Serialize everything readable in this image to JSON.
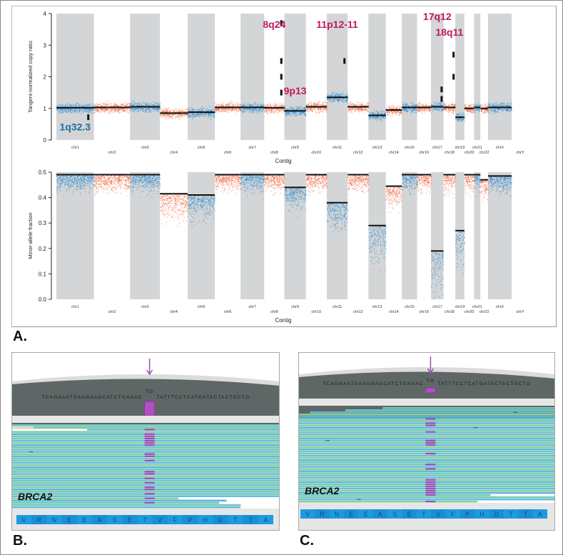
{
  "figure": {
    "panel_labels": [
      "A.",
      "B.",
      "C."
    ]
  },
  "chart_data": [
    {
      "type": "scatter",
      "id": "copy-ratio",
      "title": "",
      "xlabel": "Contig",
      "ylabel": "Tangent-normalized copy ratio",
      "ylim": [
        0,
        4
      ],
      "yticks": [
        "0",
        "1",
        "2",
        "3",
        "4"
      ],
      "grid": false,
      "categories": [
        "chr1",
        "chr2",
        "chr3",
        "chr4",
        "chr5",
        "chr6",
        "chr7",
        "chr8",
        "chr9",
        "chr10",
        "chr11",
        "chr12",
        "chr13",
        "chr14",
        "chr15",
        "chr16",
        "chr17",
        "chr18",
        "chr19",
        "chr20",
        "chr21",
        "chr22",
        "chrX",
        "chrY"
      ],
      "series": [
        {
          "name": "segment mean copy ratio",
          "values": [
            1.02,
            1.03,
            1.05,
            0.85,
            0.88,
            1.03,
            1.03,
            1.02,
            0.92,
            1.05,
            1.35,
            1.05,
            0.78,
            0.95,
            1.03,
            1.03,
            1.05,
            1.03,
            0.72,
            1.0,
            1.03,
            1.0,
            1.03,
            null
          ]
        }
      ],
      "focal_segments": [
        {
          "chrom": "chr1",
          "value": 0.72
        },
        {
          "chrom": "chr8",
          "value": 1.5
        },
        {
          "chrom": "chr8",
          "value": 2.0
        },
        {
          "chrom": "chr8",
          "value": 2.5
        },
        {
          "chrom": "chr8",
          "value": 3.7
        },
        {
          "chrom": "chr11",
          "value": 2.5
        },
        {
          "chrom": "chr17",
          "value": 1.3
        },
        {
          "chrom": "chr17",
          "value": 1.6
        },
        {
          "chrom": "chr18",
          "value": 2.0
        },
        {
          "chrom": "chr18",
          "value": 2.7
        }
      ],
      "annotations": [
        {
          "text": "1q32.3",
          "color": "#1d6fa5",
          "chrom": "chr1",
          "value": 0.3
        },
        {
          "text": "8q24",
          "color": "#c2185b",
          "chrom": "chr8",
          "value": 3.55
        },
        {
          "text": "9p13",
          "color": "#c2185b",
          "chrom": "chr9",
          "value": 1.45
        },
        {
          "text": "11p12-11",
          "color": "#c2185b",
          "chrom": "chr11",
          "value": 3.55
        },
        {
          "text": "17q12",
          "color": "#c2185b",
          "chrom": "chr17",
          "value": 3.8
        },
        {
          "text": "18q11",
          "color": "#c2185b",
          "chrom": "chr18",
          "value": 3.3
        }
      ]
    },
    {
      "type": "scatter",
      "id": "minor-allele",
      "title": "",
      "xlabel": "Contig",
      "ylabel": "Minor-allele fraction",
      "ylim": [
        0,
        0.5
      ],
      "yticks": [
        "0.0",
        "0.1",
        "0.2",
        "0.3",
        "0.4",
        "0.5"
      ],
      "grid": false,
      "categories": [
        "chr1",
        "chr2",
        "chr3",
        "chr4",
        "chr5",
        "chr6",
        "chr7",
        "chr8",
        "chr9",
        "chr10",
        "chr11",
        "chr12",
        "chr13",
        "chr14",
        "chr15",
        "chr16",
        "chr17",
        "chr18",
        "chr19",
        "chr20",
        "chr21",
        "chr22",
        "chrX",
        "chrY"
      ],
      "series": [
        {
          "name": "segment minor-allele fraction",
          "values": [
            0.49,
            0.49,
            0.49,
            0.415,
            0.41,
            0.49,
            0.49,
            0.49,
            0.44,
            0.49,
            0.38,
            0.49,
            0.29,
            0.445,
            0.49,
            0.49,
            0.19,
            0.49,
            0.27,
            0.49,
            0.49,
            0.47,
            0.485,
            null
          ]
        }
      ]
    }
  ],
  "colors": {
    "blue_points": "#2b8ad0",
    "red_points": "#f0643c",
    "band_gray": "#d3d5d6",
    "segment": "#111111",
    "annotation_red": "#c2185b",
    "annotation_blue": "#1d6fa5"
  },
  "igv_panels": [
    {
      "id": "B",
      "gene": "BRCA2",
      "ref_left": "TCAGAAATGAAGAAGCATCTGAAAC",
      "ref_right": "TATTTCCTCATGATACTACTGCTG",
      "insertion": "TG",
      "amino_acids": [
        "V",
        "R",
        "N",
        "E",
        "E",
        "A",
        "S",
        "E",
        "T",
        "V",
        "F",
        "P",
        "H",
        "D",
        "T",
        "T",
        "A"
      ]
    },
    {
      "id": "C",
      "gene": "BRCA2",
      "ref_left": "TCAGAAATGAAGAAGCATCTGAAAC",
      "ref_right": "TATTTCCTCATGATACTACTGCTG",
      "insertion": "TG",
      "amino_acids": [
        "V",
        "R",
        "N",
        "E",
        "E",
        "A",
        "S",
        "E",
        "T",
        "V",
        "F",
        "P",
        "H",
        "D",
        "T",
        "T",
        "A"
      ]
    }
  ]
}
